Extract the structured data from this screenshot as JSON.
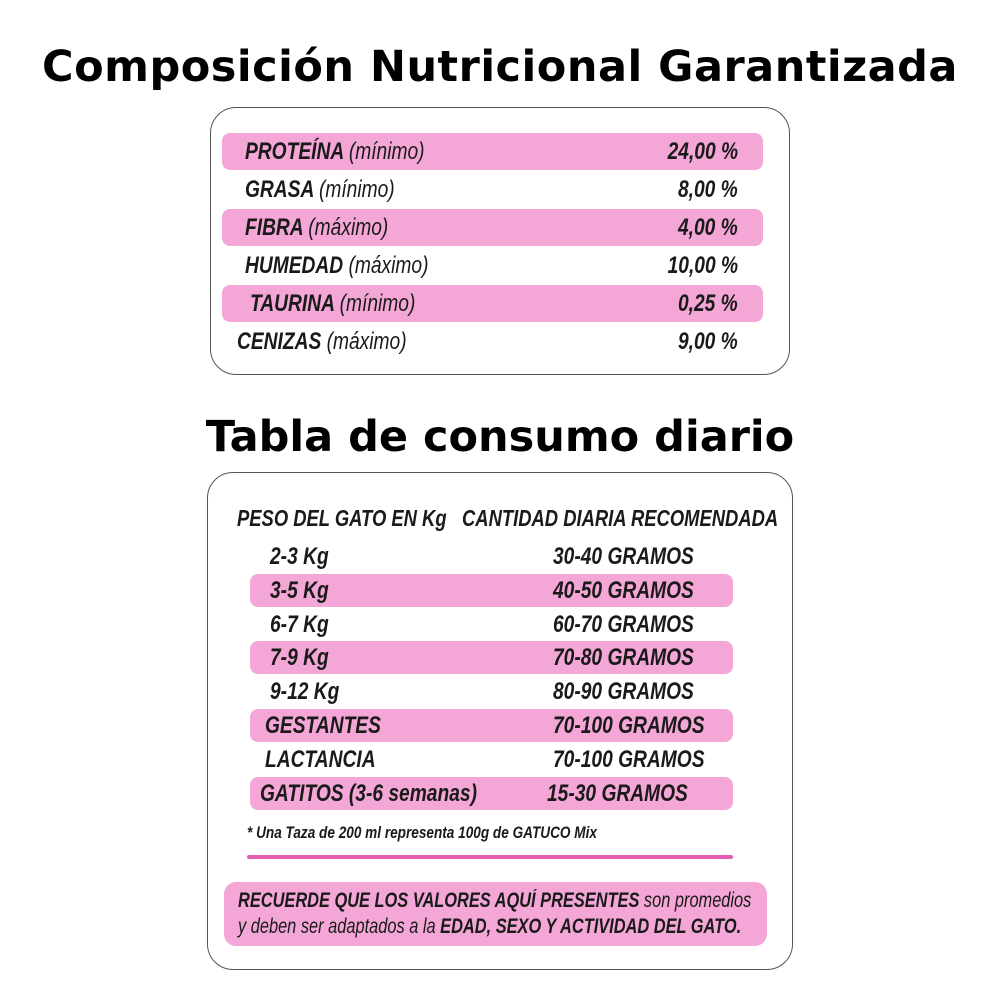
{
  "composition": {
    "title": "Composición Nutricional Garantizada",
    "rows": [
      {
        "label": "PROTEÍNA",
        "qualifier": "(mínimo)",
        "value": "24,00 %",
        "highlight": true
      },
      {
        "label": "GRASA",
        "qualifier": "(mínimo)",
        "value": "8,00 %",
        "highlight": false
      },
      {
        "label": "FIBRA",
        "qualifier": "(máximo)",
        "value": "4,00 %",
        "highlight": true
      },
      {
        "label": "HUMEDAD",
        "qualifier": "(máximo)",
        "value": "10,00 %",
        "highlight": false
      },
      {
        "label": "TAURINA",
        "qualifier": "(mínimo)",
        "value": "0,25 %",
        "highlight": true
      },
      {
        "label": "CENIZAS",
        "qualifier": "(máximo)",
        "value": "9,00 %",
        "highlight": false
      }
    ]
  },
  "consumption": {
    "title": "Tabla de consumo diario",
    "headers": [
      "PESO DEL GATO EN Kg",
      "CANTIDAD DIARIA RECOMENDADA"
    ],
    "rows": [
      {
        "weight": "2-3 Kg",
        "amount": "30-40 GRAMOS",
        "highlight": false
      },
      {
        "weight": "3-5 Kg",
        "amount": "40-50 GRAMOS",
        "highlight": true
      },
      {
        "weight": "6-7 Kg",
        "amount": "60-70 GRAMOS",
        "highlight": false
      },
      {
        "weight": "7-9 Kg",
        "amount": "70-80 GRAMOS",
        "highlight": true
      },
      {
        "weight": "9-12 Kg",
        "amount": "80-90 GRAMOS",
        "highlight": false
      },
      {
        "weight": "GESTANTES",
        "amount": "70-100 GRAMOS",
        "highlight": true
      },
      {
        "weight": "LACTANCIA",
        "amount": "70-100 GRAMOS",
        "highlight": false
      },
      {
        "weight": "GATITOS (3-6 semanas)",
        "amount": "15-30 GRAMOS",
        "highlight": true
      }
    ],
    "footnote": "* Una Taza de 200 ml representa 100g de GATUCO Mix",
    "notice": {
      "bold": "RECUERDE QUE LOS VALORES AQUÍ PRESENTES",
      "normal1": " son promedios y deben ser adaptados a la ",
      "bold2": "EDAD, SEXO Y ACTIVIDAD DEL GATO."
    }
  },
  "colors": {
    "highlight": "#f4a7d6",
    "divider": "#e45db3"
  }
}
